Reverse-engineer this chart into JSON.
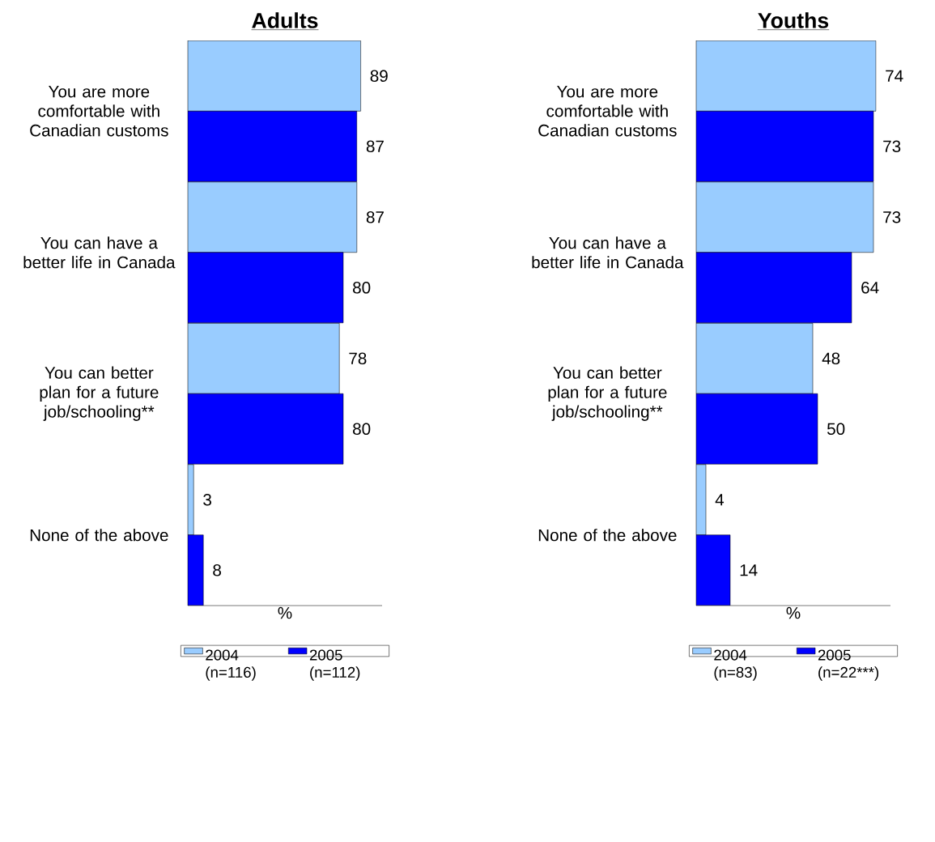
{
  "chart_data": [
    {
      "type": "bar",
      "orientation": "horizontal",
      "title": "Adults",
      "xlabel": "%",
      "categories": [
        "You are more comfortable with Canadian customs",
        "You can have a better life in Canada",
        "You can better plan for a future job/schooling**",
        "None of the above"
      ],
      "series": [
        {
          "name": "2004 (n=116)",
          "color": "#99ccff",
          "values": [
            89,
            87,
            78,
            3
          ]
        },
        {
          "name": "2005 (n=112)",
          "color": "#0000ff",
          "values": [
            87,
            80,
            80,
            8
          ]
        }
      ],
      "xlim": [
        0,
        100
      ],
      "data_labels": true,
      "tick_labels": "y",
      "legend": "bottom"
    },
    {
      "type": "bar",
      "orientation": "horizontal",
      "title": "Youths",
      "xlabel": "%",
      "categories": [
        "You are more comfortable with Canadian customs",
        "You can have a better life in Canada",
        "You can better plan for a future job/schooling**",
        "None of the above"
      ],
      "series": [
        {
          "name": "2004 (n=83)",
          "color": "#99ccff",
          "values": [
            74,
            73,
            48,
            4
          ]
        },
        {
          "name": "2005 (n=22***)",
          "color": "#0000ff",
          "values": [
            73,
            64,
            50,
            14
          ]
        }
      ],
      "xlim": [
        0,
        80
      ],
      "data_labels": true,
      "tick_labels": "y",
      "legend": "bottom"
    }
  ]
}
